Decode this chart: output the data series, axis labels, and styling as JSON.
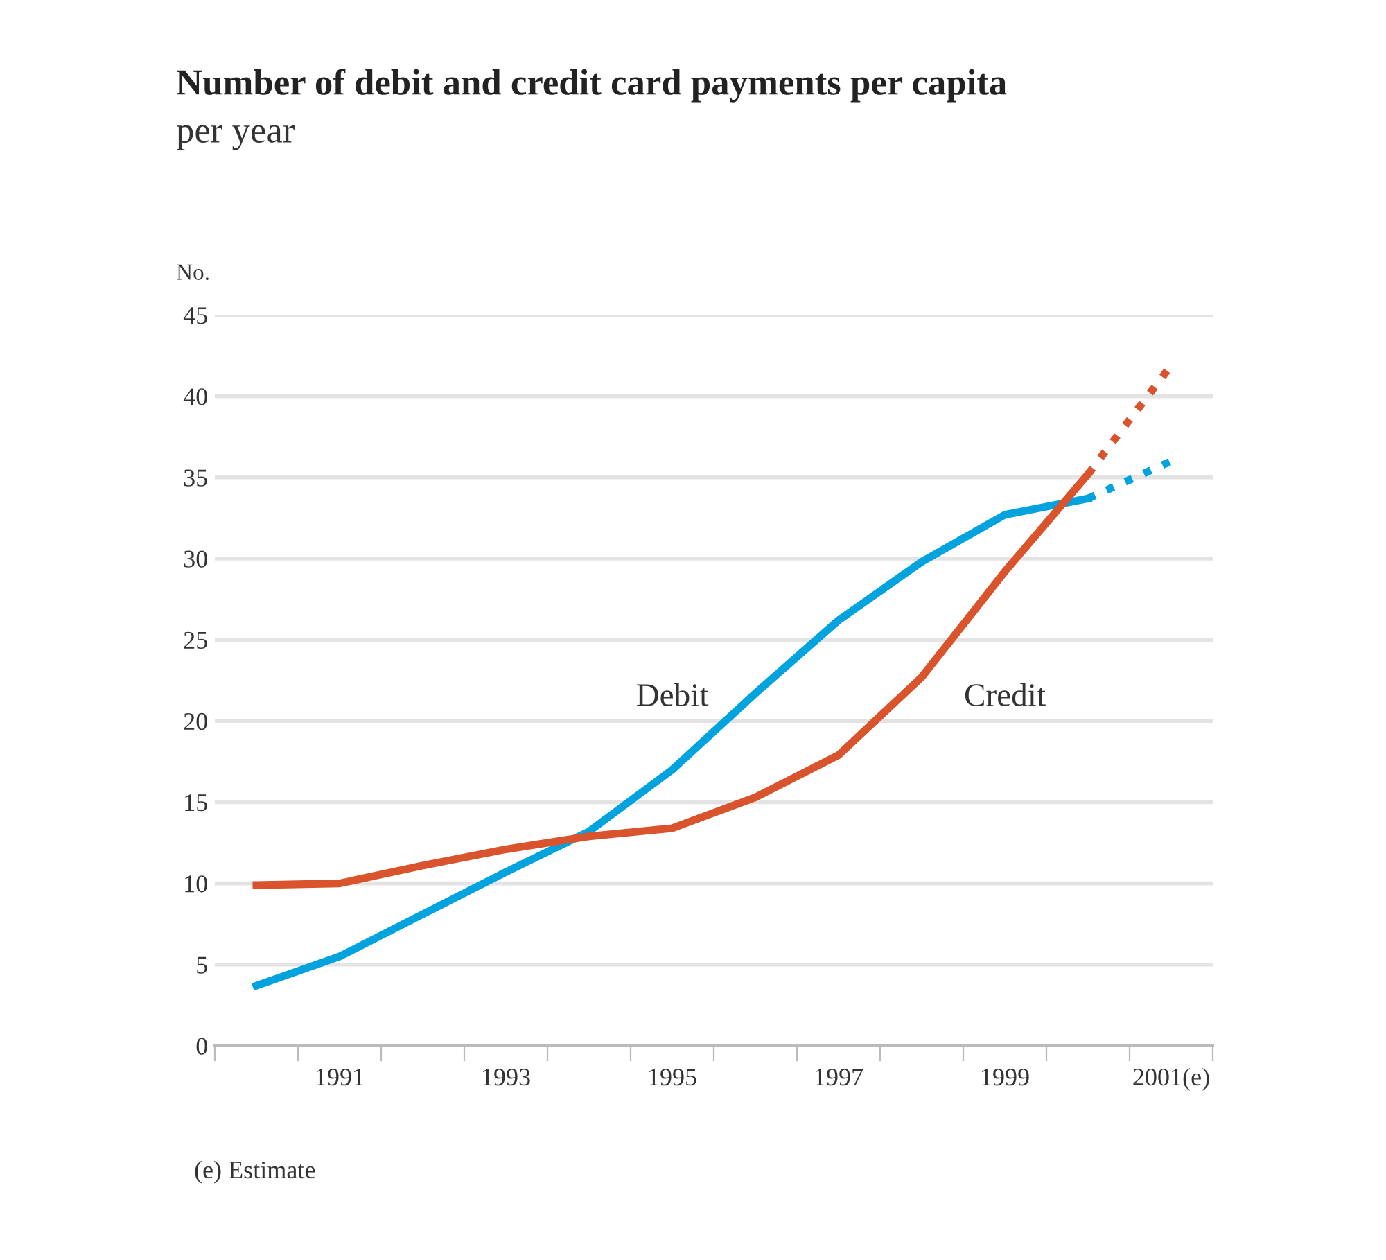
{
  "chart_data": {
    "type": "line",
    "title": "Number of debit and credit card payments per capita",
    "subtitle": "per year",
    "ylabel": "No.",
    "x": [
      1990,
      1991,
      1992,
      1993,
      1994,
      1995,
      1996,
      1997,
      1998,
      1999,
      2000,
      2001
    ],
    "series": [
      {
        "name": "Debit",
        "color": "#00a3dd",
        "values": [
          3.7,
          5.5,
          8.1,
          10.7,
          13.2,
          17.0,
          21.7,
          26.2,
          29.8,
          32.7,
          33.7,
          null
        ]
      },
      {
        "color": "#00a3dd",
        "values": [
          null,
          null,
          null,
          null,
          null,
          null,
          null,
          null,
          null,
          null,
          33.7,
          36.0
        ],
        "line_style": "dotted"
      },
      {
        "name": "Credit",
        "color": "#d9532c",
        "values": [
          9.9,
          10.0,
          11.1,
          12.1,
          12.9,
          13.4,
          15.3,
          17.9,
          22.7,
          29.2,
          35.2,
          null
        ]
      },
      {
        "color": "#d9532c",
        "values": [
          null,
          null,
          null,
          null,
          null,
          null,
          null,
          null,
          null,
          null,
          35.2,
          41.9
        ],
        "line_style": "dotted"
      }
    ],
    "xlim": [
      1989.5,
      2001.5
    ],
    "xticks": [
      {
        "value": 1989.5,
        "label": null
      },
      {
        "value": 1990.5,
        "label": null
      },
      {
        "value": 1991,
        "label": "1991"
      },
      {
        "value": 1991.5,
        "label": null
      },
      {
        "value": 1992.5,
        "label": null
      },
      {
        "value": 1993,
        "label": "1993"
      },
      {
        "value": 1993.5,
        "label": null
      },
      {
        "value": 1994.5,
        "label": null
      },
      {
        "value": 1995,
        "label": "1995"
      },
      {
        "value": 1995.5,
        "label": null
      },
      {
        "value": 1996.5,
        "label": null
      },
      {
        "value": 1997,
        "label": "1997"
      },
      {
        "value": 1997.5,
        "label": null
      },
      {
        "value": 1998.5,
        "label": null
      },
      {
        "value": 1999,
        "label": "1999"
      },
      {
        "value": 1999.5,
        "label": null
      },
      {
        "value": 2000.5,
        "label": null
      },
      {
        "value": 2001,
        "label": "2001(e)"
      },
      {
        "value": 2001.5,
        "label": null
      }
    ],
    "ylim": [
      0,
      45
    ],
    "yticks": [
      0,
      5,
      10,
      15,
      20,
      25,
      30,
      35,
      40,
      45
    ],
    "grid": "y",
    "legend": false,
    "line_style": "solid",
    "annotations": [
      "(e) Estimate"
    ]
  }
}
